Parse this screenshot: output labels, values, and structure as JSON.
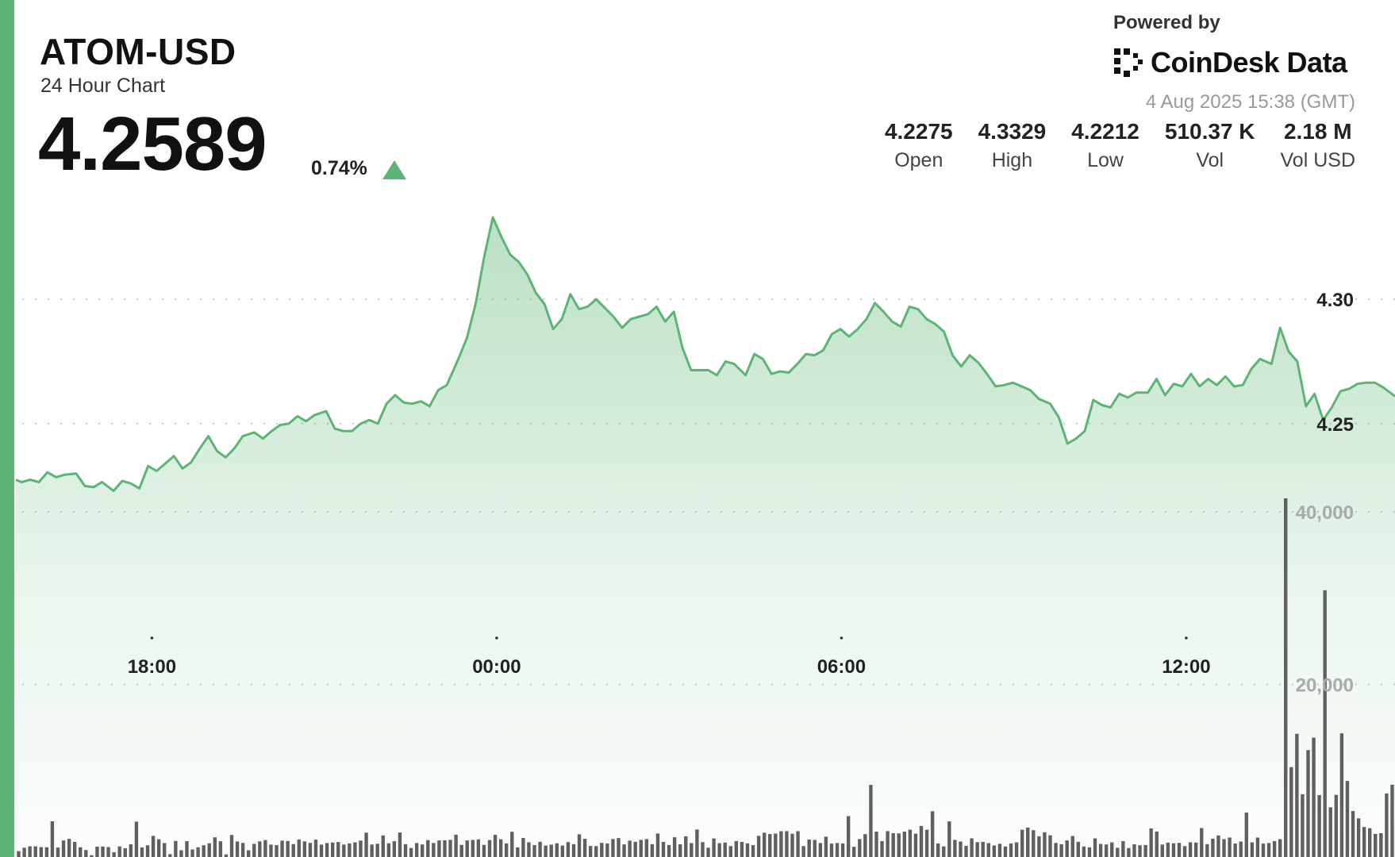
{
  "header": {
    "symbol": "ATOM-USD",
    "subtitle": "24 Hour Chart",
    "price": "4.2589",
    "change": "0.74%",
    "change_direction_icon": "triangle-up-icon"
  },
  "branding": {
    "powered_by": "Powered by",
    "brand_name": "CoinDesk Data",
    "logo_icon": "coindesk-logo-icon",
    "timestamp": "4 Aug 2025 15:38 (GMT)"
  },
  "stats": [
    {
      "value": "4.2275",
      "label": "Open"
    },
    {
      "value": "4.3329",
      "label": "High"
    },
    {
      "value": "4.2212",
      "label": "Low"
    },
    {
      "value": "510.37 K",
      "label": "Vol"
    },
    {
      "value": "2.18 M",
      "label": "Vol USD"
    }
  ],
  "colors": {
    "accent": "#5cb574",
    "line": "#5cb574",
    "volume_bar": "#5f5f5f",
    "grid": "#c8c8c8"
  },
  "chart_data": {
    "type": "line",
    "price_axis": {
      "ticks": [
        "4.30",
        "4.25"
      ],
      "tick_values": [
        4.3,
        4.25
      ],
      "ylim": [
        4.213,
        4.3421
      ]
    },
    "volume_axis": {
      "ticks": [
        "40,000",
        "20,000"
      ],
      "tick_values": [
        40000,
        20000
      ],
      "ylim": [
        0,
        41565
      ]
    },
    "x_ticks": [
      "18:00",
      "00:00",
      "06:00",
      "12:00"
    ],
    "x_tick_hours": [
      2.367,
      8.367,
      14.367,
      20.367
    ],
    "x_range_hours": [
      0,
      24
    ],
    "grid": "dotted-horizontal",
    "price_series": {
      "name": "",
      "x_hours": [
        0,
        0.1,
        0.25,
        0.4,
        0.55,
        0.7,
        0.85,
        1.05,
        1.2,
        1.35,
        1.5,
        1.7,
        1.85,
        2.0,
        2.15,
        2.3,
        2.45,
        2.6,
        2.75,
        2.9,
        3.05,
        3.2,
        3.35,
        3.5,
        3.65,
        3.8,
        3.95,
        4.15,
        4.3,
        4.45,
        4.6,
        4.75,
        4.9,
        5.05,
        5.2,
        5.4,
        5.55,
        5.7,
        5.85,
        6.0,
        6.15,
        6.3,
        6.45,
        6.6,
        6.75,
        6.9,
        7.05,
        7.2,
        7.35,
        7.5,
        7.7,
        7.85,
        8.0,
        8.15,
        8.3,
        8.45,
        8.6,
        8.75,
        8.9,
        9.05,
        9.2,
        9.35,
        9.5,
        9.65,
        9.8,
        9.95,
        10.1,
        10.25,
        10.4,
        10.55,
        10.7,
        10.85,
        11.0,
        11.15,
        11.3,
        11.45,
        11.6,
        11.75,
        11.9,
        12.05,
        12.2,
        12.35,
        12.5,
        12.7,
        12.85,
        13.0,
        13.15,
        13.3,
        13.45,
        13.6,
        13.75,
        13.9,
        14.05,
        14.2,
        14.35,
        14.5,
        14.65,
        14.8,
        14.95,
        15.1,
        15.25,
        15.4,
        15.55,
        15.7,
        15.85,
        16.0,
        16.15,
        16.3,
        16.45,
        16.6,
        16.75,
        16.9,
        17.05,
        17.2,
        17.35,
        17.5,
        17.65,
        17.8,
        18.0,
        18.15,
        18.3,
        18.45,
        18.6,
        18.75,
        18.9,
        19.05,
        19.2,
        19.35,
        19.5,
        19.7,
        19.85,
        20.0,
        20.15,
        20.3,
        20.45,
        20.6,
        20.75,
        20.9,
        21.05,
        21.2,
        21.35,
        21.5,
        21.65,
        21.85,
        22.0,
        22.15,
        22.3,
        22.45,
        22.6,
        22.75,
        22.9,
        23.05,
        23.2,
        23.35,
        23.5,
        23.65,
        23.8,
        24.0
      ],
      "values": [
        4.2275,
        4.2265,
        4.2275,
        4.2265,
        4.2305,
        4.2285,
        4.2295,
        4.23,
        4.225,
        4.2245,
        4.2265,
        4.223,
        4.227,
        4.226,
        4.224,
        4.233,
        4.231,
        4.234,
        4.237,
        4.232,
        4.2345,
        4.24,
        4.245,
        4.239,
        4.2365,
        4.24,
        4.245,
        4.2465,
        4.244,
        4.247,
        4.2495,
        4.25,
        4.253,
        4.251,
        4.2535,
        4.255,
        4.248,
        4.247,
        4.247,
        4.25,
        4.2515,
        4.25,
        4.258,
        4.2615,
        4.2585,
        4.258,
        4.259,
        4.257,
        4.2635,
        4.2655,
        4.276,
        4.2845,
        4.298,
        4.317,
        4.3329,
        4.325,
        4.318,
        4.315,
        4.31,
        4.3025,
        4.298,
        4.288,
        4.292,
        4.302,
        4.296,
        4.297,
        4.3,
        4.2965,
        4.293,
        4.2885,
        4.292,
        4.293,
        4.294,
        4.297,
        4.291,
        4.295,
        4.2805,
        4.2715,
        4.2715,
        4.2715,
        4.2695,
        4.275,
        4.274,
        4.2695,
        4.278,
        4.276,
        4.27,
        4.271,
        4.2705,
        4.274,
        4.278,
        4.2775,
        4.2795,
        4.286,
        4.288,
        4.285,
        4.288,
        4.292,
        4.2985,
        4.295,
        4.291,
        4.289,
        4.297,
        4.296,
        4.292,
        4.29,
        4.287,
        4.2775,
        4.273,
        4.2775,
        4.2745,
        4.27,
        4.265,
        4.2655,
        4.2665,
        4.265,
        4.2635,
        4.26,
        4.258,
        4.2525,
        4.242,
        4.244,
        4.247,
        4.2595,
        4.2575,
        4.2565,
        4.262,
        4.2605,
        4.2625,
        4.2625,
        4.268,
        4.2615,
        4.266,
        4.265,
        4.27,
        4.265,
        4.268,
        4.2655,
        4.269,
        4.265,
        4.2655,
        4.272,
        4.276,
        4.274,
        4.2885,
        4.279,
        4.275,
        4.257,
        4.262,
        4.2515,
        4.2565,
        4.263,
        4.264,
        4.266,
        4.2665,
        4.2665,
        4.2645,
        4.261
      ]
    },
    "volume_series": {
      "name": "",
      "values": [
        680,
        1080,
        1240,
        1240,
        1150,
        1130,
        4140,
        1090,
        1920,
        2110,
        1750,
        1130,
        810,
        200,
        1200,
        1210,
        1150,
        550,
        1220,
        1010,
        1470,
        4100,
        1110,
        1360,
        2450,
        2060,
        1620,
        330,
        1870,
        780,
        1840,
        870,
        1120,
        1360,
        1590,
        2280,
        1830,
        300,
        2550,
        1800,
        1640,
        780,
        1520,
        1810,
        1960,
        1430,
        1370,
        1890,
        1860,
        1500,
        2030,
        1810,
        1640,
        2010,
        1430,
        1620,
        1680,
        1740,
        1430,
        1560,
        1690,
        1900,
        2820,
        1440,
        1540,
        2500,
        1590,
        1830,
        2840,
        1490,
        1050,
        1620,
        1450,
        1950,
        1620,
        1920,
        1940,
        1990,
        2580,
        1410,
        1920,
        1980,
        2040,
        1410,
        1960,
        2570,
        2050,
        1570,
        2920,
        1120,
        2210,
        1700,
        1380,
        1770,
        1320,
        1430,
        1590,
        1320,
        1730,
        1490,
        2630,
        2110,
        1280,
        1260,
        1640,
        1560,
        2090,
        2200,
        1460,
        1900,
        1760,
        1990,
        2080,
        1490,
        2720,
        1750,
        1390,
        2290,
        1470,
        2400,
        1610,
        3190,
        1730,
        1080,
        2150,
        1600,
        1670,
        1260,
        1850,
        1750,
        1580,
        1370,
        2450,
        2810,
        2660,
        2720,
        2990,
        3000,
        2690,
        2990,
        1260,
        2020,
        1980,
        1620,
        2350,
        1550,
        1620,
        1570,
        4740,
        1190,
        2080,
        2650,
        8360,
        2940,
        1840,
        3000,
        2760,
        2740,
        2940,
        3160,
        2700,
        3600,
        3150,
        5310,
        1570,
        1230,
        4130,
        1990,
        1790,
        1300,
        2160,
        1720,
        1750,
        1610,
        1330,
        1540,
        1210,
        1570,
        1700,
        3160,
        3410,
        3110,
        2400,
        2870,
        2520,
        1640,
        1480,
        1920,
        2440,
        1760,
        1210,
        1120,
        2160,
        1520,
        1450,
        1690,
        1070,
        1840,
        1050,
        1470,
        1360,
        1390,
        3310,
        2960,
        1440,
        1660,
        1590,
        1640,
        1260,
        1700,
        1670,
        3360,
        1490,
        2120,
        2490,
        2070,
        2250,
        1560,
        1790,
        5150,
        1690,
        2250,
        1550,
        1620,
        1850,
        2070,
        41565,
        10410,
        14280,
        7270,
        12390,
        13840,
        7170,
        30920,
        5760,
        7200,
        14330,
        8820,
        5320,
        4480,
        3480,
        3340,
        2680,
        2760,
        7370,
        8380
      ]
    }
  }
}
